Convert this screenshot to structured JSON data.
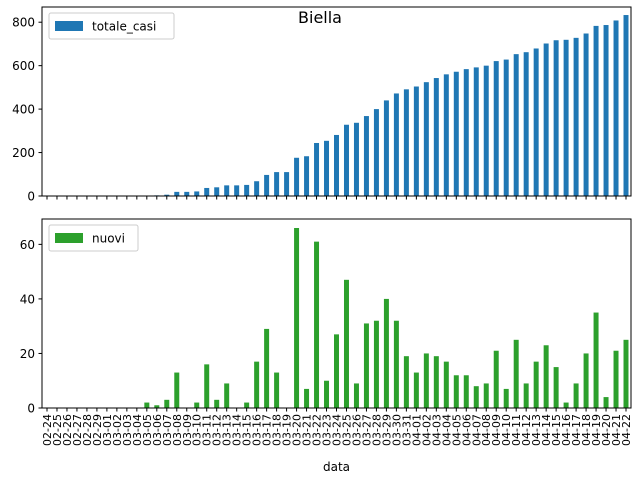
{
  "chart_data": [
    {
      "type": "bar",
      "title": "Biella",
      "xlabel": "data",
      "ylabel": "",
      "ylim": [
        0,
        870
      ],
      "yticks": [
        0,
        200,
        400,
        600,
        800
      ],
      "legend": "top-left",
      "categories": [
        "02-24",
        "02-25",
        "02-26",
        "02-27",
        "02-28",
        "02-29",
        "03-01",
        "03-02",
        "03-03",
        "03-04",
        "03-05",
        "03-06",
        "03-07",
        "03-08",
        "03-09",
        "03-10",
        "03-11",
        "03-12",
        "03-13",
        "03-14",
        "03-15",
        "03-16",
        "03-17",
        "03-18",
        "03-19",
        "03-20",
        "03-21",
        "03-22",
        "03-23",
        "03-24",
        "03-25",
        "03-26",
        "03-27",
        "03-28",
        "03-29",
        "03-30",
        "03-31",
        "04-01",
        "04-02",
        "04-03",
        "04-04",
        "04-05",
        "04-06",
        "04-07",
        "04-08",
        "04-09",
        "04-10",
        "04-11",
        "04-12",
        "04-13",
        "04-14",
        "04-15",
        "04-16",
        "04-17",
        "04-18",
        "04-19",
        "04-20",
        "04-21",
        "04-22"
      ],
      "series": [
        {
          "name": "totale_casi",
          "color": "#1f77b4",
          "values": [
            0,
            0,
            0,
            0,
            0,
            0,
            0,
            0,
            0,
            0,
            2,
            3,
            6,
            19,
            19,
            21,
            37,
            40,
            49,
            49,
            51,
            68,
            97,
            110,
            110,
            176,
            183,
            244,
            254,
            281,
            328,
            337,
            368,
            400,
            440,
            472,
            491,
            504,
            524,
            543,
            560,
            572,
            584,
            592,
            600,
            621,
            628,
            653,
            662,
            679,
            702,
            717,
            719,
            728,
            748,
            783,
            787,
            808,
            833
          ]
        }
      ]
    },
    {
      "type": "bar",
      "title": "",
      "xlabel": "data",
      "ylabel": "",
      "ylim": [
        0,
        69.3
      ],
      "yticks": [
        0,
        20,
        40,
        60
      ],
      "legend": "top-left",
      "categories": [
        "02-24",
        "02-25",
        "02-26",
        "02-27",
        "02-28",
        "02-29",
        "03-01",
        "03-02",
        "03-03",
        "03-04",
        "03-05",
        "03-06",
        "03-07",
        "03-08",
        "03-09",
        "03-10",
        "03-11",
        "03-12",
        "03-13",
        "03-14",
        "03-15",
        "03-16",
        "03-17",
        "03-18",
        "03-19",
        "03-20",
        "03-21",
        "03-22",
        "03-23",
        "03-24",
        "03-25",
        "03-26",
        "03-27",
        "03-28",
        "03-29",
        "03-30",
        "03-31",
        "04-01",
        "04-02",
        "04-03",
        "04-04",
        "04-05",
        "04-06",
        "04-07",
        "04-08",
        "04-09",
        "04-10",
        "04-11",
        "04-12",
        "04-13",
        "04-14",
        "04-15",
        "04-16",
        "04-17",
        "04-18",
        "04-19",
        "04-20",
        "04-21",
        "04-22"
      ],
      "series": [
        {
          "name": "nuovi",
          "color": "#2ca02c",
          "values": [
            0,
            0,
            0,
            0,
            0,
            0,
            0,
            0,
            0,
            0,
            2,
            1,
            3,
            13,
            0,
            2,
            16,
            3,
            9,
            0,
            2,
            17,
            29,
            13,
            0,
            66,
            7,
            61,
            10,
            27,
            47,
            9,
            31,
            32,
            40,
            32,
            19,
            13,
            20,
            19,
            17,
            12,
            12,
            8,
            9,
            21,
            7,
            25,
            9,
            17,
            23,
            15,
            2,
            9,
            20,
            35,
            4,
            21,
            25
          ]
        }
      ]
    }
  ]
}
